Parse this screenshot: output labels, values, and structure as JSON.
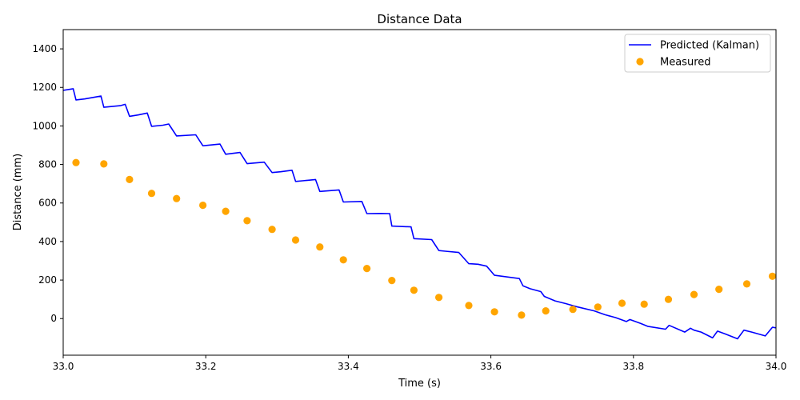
{
  "chart_data": {
    "type": "line",
    "title": "Distance Data",
    "xlabel": "Time (s)",
    "ylabel": "Distance (mm)",
    "xlim": [
      33.0,
      34.0
    ],
    "ylim": [
      -190,
      1500
    ],
    "xticks": [
      33.0,
      33.2,
      33.4,
      33.6,
      33.8,
      34.0
    ],
    "xtick_labels": [
      "33.0",
      "33.2",
      "33.4",
      "33.6",
      "33.8",
      "34.0"
    ],
    "yticks": [
      0,
      200,
      400,
      600,
      800,
      1000,
      1200,
      1400
    ],
    "ytick_labels": [
      "0",
      "200",
      "400",
      "600",
      "800",
      "1000",
      "1200",
      "1400"
    ],
    "grid": false,
    "legend_position": "top-right",
    "series": [
      {
        "name": "Predicted (Kalman)",
        "kind": "line",
        "color": "#0000ff",
        "x": [
          33.0,
          33.014,
          33.018,
          33.03,
          33.053,
          33.057,
          33.08,
          33.087,
          33.093,
          33.105,
          33.118,
          33.124,
          33.14,
          33.148,
          33.159,
          33.186,
          33.196,
          33.22,
          33.228,
          33.248,
          33.258,
          33.282,
          33.293,
          33.305,
          33.321,
          33.326,
          33.344,
          33.354,
          33.36,
          33.387,
          33.393,
          33.419,
          33.426,
          33.445,
          33.458,
          33.461,
          33.488,
          33.492,
          33.517,
          33.527,
          33.536,
          33.555,
          33.569,
          33.582,
          33.594,
          33.605,
          33.64,
          33.645,
          33.655,
          33.67,
          33.675,
          33.69,
          33.705,
          33.72,
          33.745,
          33.76,
          33.775,
          33.79,
          33.795,
          33.81,
          33.82,
          33.845,
          33.85,
          33.872,
          33.88,
          33.885,
          33.895,
          33.911,
          33.918,
          33.929,
          33.946,
          33.955,
          33.966,
          33.985,
          33.995,
          34.0
        ],
        "y": [
          1185,
          1193,
          1135,
          1140,
          1155,
          1097,
          1105,
          1112,
          1050,
          1057,
          1067,
          998,
          1004,
          1010,
          948,
          954,
          897,
          906,
          853,
          862,
          804,
          812,
          758,
          762,
          770,
          712,
          718,
          722,
          660,
          668,
          605,
          608,
          545,
          546,
          545,
          480,
          476,
          415,
          410,
          353,
          350,
          343,
          285,
          282,
          272,
          225,
          208,
          170,
          155,
          140,
          115,
          92,
          78,
          62,
          40,
          20,
          5,
          -15,
          -5,
          -25,
          -40,
          -55,
          -35,
          -70,
          -50,
          -60,
          -70,
          -100,
          -65,
          -80,
          -105,
          -60,
          -70,
          -90,
          -45,
          -48
        ]
      },
      {
        "name": "Measured",
        "kind": "scatter",
        "color": "#ffa500",
        "x": [
          33.018,
          33.057,
          33.093,
          33.124,
          33.159,
          33.196,
          33.228,
          33.258,
          33.293,
          33.326,
          33.36,
          33.393,
          33.426,
          33.461,
          33.492,
          33.527,
          33.569,
          33.605,
          33.643,
          33.677,
          33.715,
          33.75,
          33.784,
          33.815,
          33.849,
          33.885,
          33.92,
          33.959,
          33.995
        ],
        "y": [
          810,
          803,
          722,
          650,
          623,
          588,
          557,
          508,
          463,
          408,
          372,
          305,
          260,
          198,
          147,
          110,
          68,
          35,
          18,
          40,
          48,
          60,
          80,
          75,
          100,
          125,
          152,
          180,
          220
        ]
      }
    ]
  }
}
